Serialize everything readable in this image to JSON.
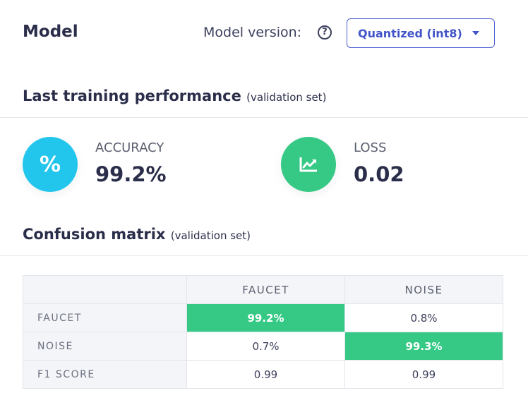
{
  "header": {
    "title": "Model",
    "version_label": "Model version:",
    "help_glyph": "?",
    "version_selected": "Quantized (int8)"
  },
  "performance": {
    "title": "Last training performance",
    "subtitle": "(validation set)",
    "accuracy": {
      "label": "ACCURACY",
      "value": "99.2%",
      "icon": "percent-icon",
      "glyph": "%",
      "color": "#22c6ec"
    },
    "loss": {
      "label": "LOSS",
      "value": "0.02",
      "icon": "trend-chart-icon",
      "color": "#35c985"
    }
  },
  "confusion": {
    "title": "Confusion matrix",
    "subtitle": "(validation set)",
    "columns": [
      "FAUCET",
      "NOISE"
    ],
    "rows": [
      {
        "label": "FAUCET",
        "cells": [
          "99.2%",
          "0.8%"
        ]
      },
      {
        "label": "NOISE",
        "cells": [
          "0.7%",
          "99.3%"
        ]
      },
      {
        "label": "F1 SCORE",
        "cells": [
          "0.99",
          "0.99"
        ]
      }
    ],
    "highlight_color": "#35c985"
  },
  "colors": {
    "accent": "#4255c8",
    "text": "#2b2e4a"
  }
}
